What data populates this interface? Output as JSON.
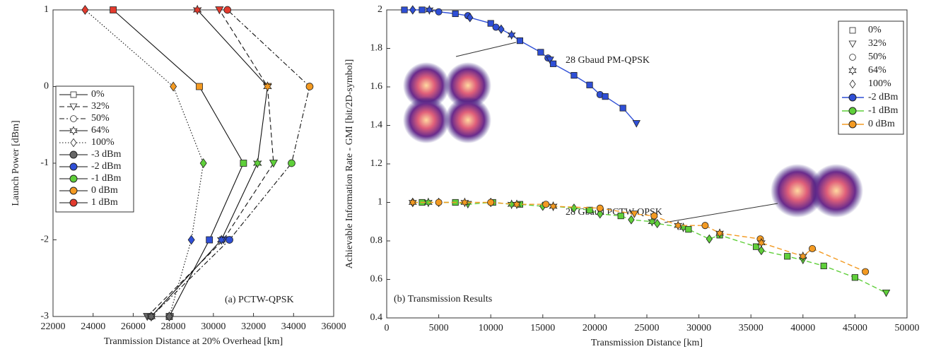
{
  "chart_data": [
    {
      "type": "line",
      "annotation": "(a) PCTW-QPSK",
      "x_label": "Tranmission Distance at 20% Overhead [km]",
      "y_label": "Launch Power [dBm]",
      "xlim": [
        22000,
        36000
      ],
      "xticks": [
        22000,
        24000,
        26000,
        28000,
        30000,
        32000,
        34000,
        36000
      ],
      "ylim": [
        -3,
        1
      ],
      "yticks": [
        -3,
        -2,
        -1,
        0,
        1
      ],
      "grid": false,
      "legend": "left",
      "y": [
        -3,
        -2,
        -1,
        0,
        1
      ],
      "series": [
        {
          "name": "0%",
          "marker": "square",
          "dash": "solid",
          "x": [
            27800,
            29800,
            31500,
            29300,
            25000
          ]
        },
        {
          "name": "32%",
          "marker": "triangle",
          "dash": "dashed",
          "x": [
            26700,
            30500,
            33000,
            32700,
            30300
          ]
        },
        {
          "name": "50%",
          "marker": "circle",
          "dash": "dashdot",
          "x": [
            26900,
            30800,
            33900,
            34800,
            30700
          ]
        },
        {
          "name": "64%",
          "marker": "star",
          "dash": "solid",
          "x": [
            26900,
            30400,
            32200,
            32700,
            29200
          ]
        },
        {
          "name": "100%",
          "marker": "diamond",
          "dash": "dotted",
          "x": [
            27800,
            28900,
            29500,
            28000,
            23600
          ]
        }
      ],
      "power_levels": [
        {
          "name": "-3 dBm",
          "color": "#666666"
        },
        {
          "name": "-2 dBm",
          "color": "#2f4fd6"
        },
        {
          "name": "-1 dBm",
          "color": "#5fcf3a"
        },
        {
          "name": "0 dBm",
          "color": "#f39a22"
        },
        {
          "name": "1 dBm",
          "color": "#e23b2e"
        }
      ]
    },
    {
      "type": "scatter",
      "annotations": [
        "28 Gbaud PM-QPSK",
        "28 Gbaud PCTW-QPSK",
        "(b) Transmission Results"
      ],
      "x_label": "Transmission Distance [km]",
      "y_label": "Achievable Information Rate - GMI [bit/2D-symbol]",
      "xlim": [
        0,
        50000
      ],
      "xticks": [
        0,
        5000,
        10000,
        15000,
        20000,
        25000,
        30000,
        35000,
        40000,
        45000,
        50000
      ],
      "ylim": [
        0.4,
        2
      ],
      "yticks": [
        0.4,
        0.6,
        0.8,
        1,
        1.2,
        1.4,
        1.6,
        1.8,
        2
      ],
      "grid": false,
      "legend": "upper right",
      "marker_legend": [
        {
          "name": "0%",
          "marker": "square"
        },
        {
          "name": "32%",
          "marker": "triangle"
        },
        {
          "name": "50%",
          "marker": "circle"
        },
        {
          "name": "64%",
          "marker": "star"
        },
        {
          "name": "100%",
          "marker": "diamond"
        }
      ],
      "series": [
        {
          "name": "-2 dBm",
          "color": "#2f4fd6",
          "dash": "solid",
          "x": [
            1700,
            2500,
            3400,
            4100,
            5000,
            6600,
            7800,
            8000,
            10000,
            10500,
            11000,
            12000,
            12800,
            14800,
            15500,
            15700,
            16000,
            18000,
            19500,
            20500,
            21000,
            22700,
            24000
          ],
          "y": [
            2.0,
            2.0,
            2.0,
            2.0,
            1.99,
            1.98,
            1.97,
            1.96,
            1.93,
            1.91,
            1.9,
            1.87,
            1.84,
            1.78,
            1.75,
            1.74,
            1.72,
            1.66,
            1.61,
            1.56,
            1.55,
            1.49,
            1.41
          ],
          "markers": [
            "square",
            "diamond",
            "square",
            "star",
            "circle",
            "square",
            "circle",
            "diamond",
            "square",
            "circle",
            "diamond",
            "star",
            "square",
            "square",
            "circle",
            "triangle",
            "square",
            "square",
            "square",
            "circle",
            "square",
            "square",
            "triangle"
          ]
        },
        {
          "name": "-1 dBm",
          "color": "#5fcf3a",
          "dash": "dashed",
          "x": [
            2500,
            3400,
            4000,
            5000,
            6600,
            7800,
            10000,
            10200,
            12000,
            12800,
            15000,
            16000,
            18000,
            19500,
            20500,
            22500,
            23500,
            25500,
            26000,
            28500,
            29000,
            31000,
            32000,
            35500,
            36000,
            38500,
            40000,
            42000,
            45000,
            48000
          ],
          "y": [
            1.0,
            1.0,
            1.0,
            1.0,
            1.0,
            0.99,
            1.0,
            1.0,
            0.99,
            0.99,
            0.98,
            0.98,
            0.97,
            0.96,
            0.94,
            0.93,
            0.91,
            0.9,
            0.89,
            0.87,
            0.86,
            0.81,
            0.83,
            0.77,
            0.75,
            0.72,
            0.7,
            0.67,
            0.61,
            0.53
          ],
          "markers": [
            "diamond",
            "square",
            "star",
            "diamond",
            "square",
            "triangle",
            "diamond",
            "square",
            "star",
            "square",
            "diamond",
            "star",
            "diamond",
            "square",
            "diamond",
            "square",
            "diamond",
            "star",
            "diamond",
            "star",
            "square",
            "diamond",
            "square",
            "square",
            "diamond",
            "square",
            "triangle",
            "square",
            "square",
            "triangle"
          ]
        },
        {
          "name": "0 dBm",
          "color": "#f39a22",
          "dash": "dashed",
          "x": [
            2500,
            5000,
            7500,
            10000,
            12500,
            15300,
            16000,
            20500,
            23800,
            25700,
            28000,
            30600,
            32000,
            35900,
            36000,
            40000,
            40900,
            46000
          ],
          "y": [
            1.0,
            1.0,
            1.0,
            1.0,
            0.99,
            0.99,
            0.98,
            0.97,
            0.94,
            0.93,
            0.88,
            0.88,
            0.84,
            0.81,
            0.79,
            0.72,
            0.76,
            0.64
          ],
          "markers": [
            "star",
            "circle",
            "star",
            "circle",
            "star",
            "circle",
            "star",
            "circle",
            "triangle",
            "circle",
            "star",
            "circle",
            "star",
            "circle",
            "star",
            "star",
            "circle",
            "circle"
          ]
        }
      ]
    }
  ]
}
